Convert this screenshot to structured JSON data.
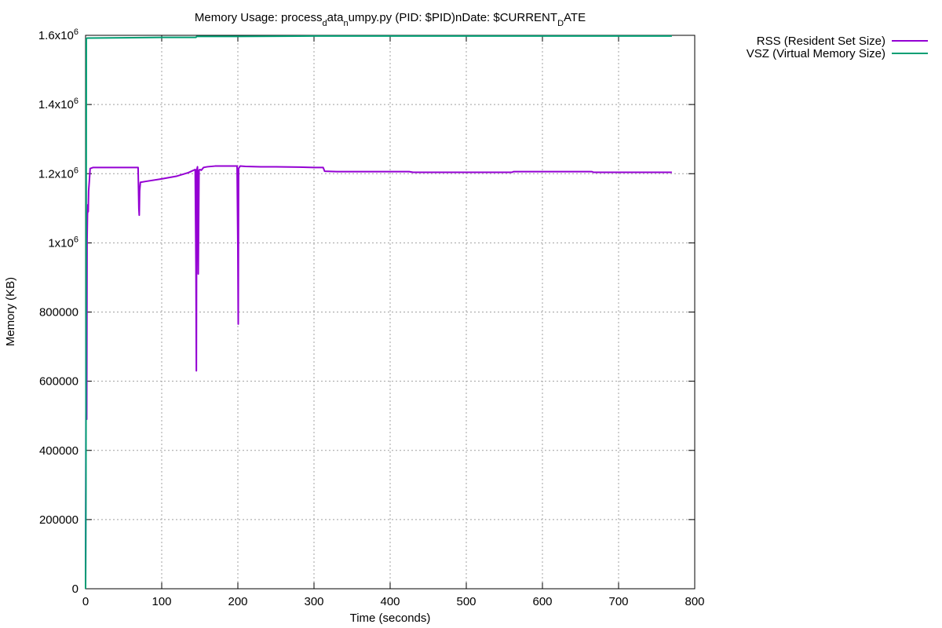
{
  "chart_data": {
    "type": "line",
    "title_parts": [
      {
        "text": "Memory Usage: process",
        "sub": false
      },
      {
        "text": "d",
        "sub": true
      },
      {
        "text": "ata",
        "sub": false
      },
      {
        "text": "n",
        "sub": true
      },
      {
        "text": "umpy.py (PID: $PID)nDate: $CURRENT",
        "sub": false
      },
      {
        "text": "D",
        "sub": true
      },
      {
        "text": "ATE",
        "sub": false
      }
    ],
    "xlabel": "Time (seconds)",
    "ylabel": "Memory (KB)",
    "xlim": [
      0,
      800
    ],
    "ylim": [
      0,
      1600000
    ],
    "grid": true,
    "legend_position": "outside-top-right",
    "x_ticks": [
      {
        "value": 0,
        "label": "0"
      },
      {
        "value": 100,
        "label": "100"
      },
      {
        "value": 200,
        "label": "200"
      },
      {
        "value": 300,
        "label": "300"
      },
      {
        "value": 400,
        "label": "400"
      },
      {
        "value": 500,
        "label": "500"
      },
      {
        "value": 600,
        "label": "600"
      },
      {
        "value": 700,
        "label": "700"
      },
      {
        "value": 800,
        "label": "800"
      }
    ],
    "y_ticks": [
      {
        "value": 0,
        "base": "0",
        "exp": ""
      },
      {
        "value": 200000,
        "base": "200000",
        "exp": ""
      },
      {
        "value": 400000,
        "base": "400000",
        "exp": ""
      },
      {
        "value": 600000,
        "base": "600000",
        "exp": ""
      },
      {
        "value": 800000,
        "base": "800000",
        "exp": ""
      },
      {
        "value": 1000000,
        "base": "1x10",
        "exp": "6"
      },
      {
        "value": 1200000,
        "base": "1.2x10",
        "exp": "6"
      },
      {
        "value": 1400000,
        "base": "1.4x10",
        "exp": "6"
      },
      {
        "value": 1600000,
        "base": "1.6x10",
        "exp": "6"
      }
    ],
    "series": [
      {
        "name": "RSS (Resident Set Size)",
        "color": "#9400d3",
        "points": [
          [
            0,
            0
          ],
          [
            0.5,
            500000
          ],
          [
            1,
            810000
          ],
          [
            1.5,
            490000
          ],
          [
            2,
            1010000
          ],
          [
            2.5,
            1080000
          ],
          [
            3,
            1110000
          ],
          [
            3.5,
            1090000
          ],
          [
            4,
            1150000
          ],
          [
            5,
            1180000
          ],
          [
            6,
            1215000
          ],
          [
            10,
            1218000
          ],
          [
            30,
            1218000
          ],
          [
            50,
            1218000
          ],
          [
            69,
            1218000
          ],
          [
            70,
            1100000
          ],
          [
            70.5,
            1080000
          ],
          [
            71,
            1150000
          ],
          [
            72,
            1175000
          ],
          [
            80,
            1178000
          ],
          [
            100,
            1185000
          ],
          [
            120,
            1193000
          ],
          [
            135,
            1203000
          ],
          [
            144,
            1212000
          ],
          [
            145,
            930000
          ],
          [
            145.5,
            630000
          ],
          [
            146,
            1210000
          ],
          [
            147,
            1220000
          ],
          [
            148,
            910000
          ],
          [
            149,
            1210000
          ],
          [
            150,
            1212000
          ],
          [
            152,
            1210000
          ],
          [
            155,
            1218000
          ],
          [
            160,
            1220000
          ],
          [
            170,
            1222000
          ],
          [
            180,
            1222000
          ],
          [
            195,
            1222000
          ],
          [
            199,
            1222000
          ],
          [
            200,
            990000
          ],
          [
            200.5,
            765000
          ],
          [
            201,
            1215000
          ],
          [
            203,
            1222000
          ],
          [
            210,
            1221000
          ],
          [
            230,
            1220000
          ],
          [
            250,
            1220000
          ],
          [
            280,
            1219000
          ],
          [
            300,
            1218000
          ],
          [
            312,
            1218000
          ],
          [
            314,
            1207000
          ],
          [
            330,
            1206000
          ],
          [
            360,
            1206000
          ],
          [
            400,
            1206000
          ],
          [
            425,
            1206000
          ],
          [
            430,
            1204000
          ],
          [
            460,
            1204000
          ],
          [
            500,
            1204000
          ],
          [
            530,
            1204000
          ],
          [
            560,
            1204000
          ],
          [
            562,
            1206000
          ],
          [
            600,
            1206000
          ],
          [
            640,
            1206000
          ],
          [
            665,
            1206000
          ],
          [
            667,
            1204000
          ],
          [
            700,
            1204000
          ],
          [
            740,
            1204000
          ],
          [
            770,
            1204000
          ]
        ]
      },
      {
        "name": "VSZ (Virtual Memory Size)",
        "color": "#009e73",
        "points": [
          [
            0,
            0
          ],
          [
            0.5,
            300000
          ],
          [
            1,
            1590000
          ],
          [
            2,
            1592000
          ],
          [
            50,
            1593000
          ],
          [
            100,
            1594000
          ],
          [
            145,
            1594000
          ],
          [
            146,
            1597000
          ],
          [
            200,
            1597000
          ],
          [
            300,
            1598000
          ],
          [
            400,
            1598000
          ],
          [
            500,
            1598000
          ],
          [
            600,
            1598000
          ],
          [
            700,
            1598000
          ],
          [
            770,
            1598000
          ]
        ]
      }
    ]
  }
}
